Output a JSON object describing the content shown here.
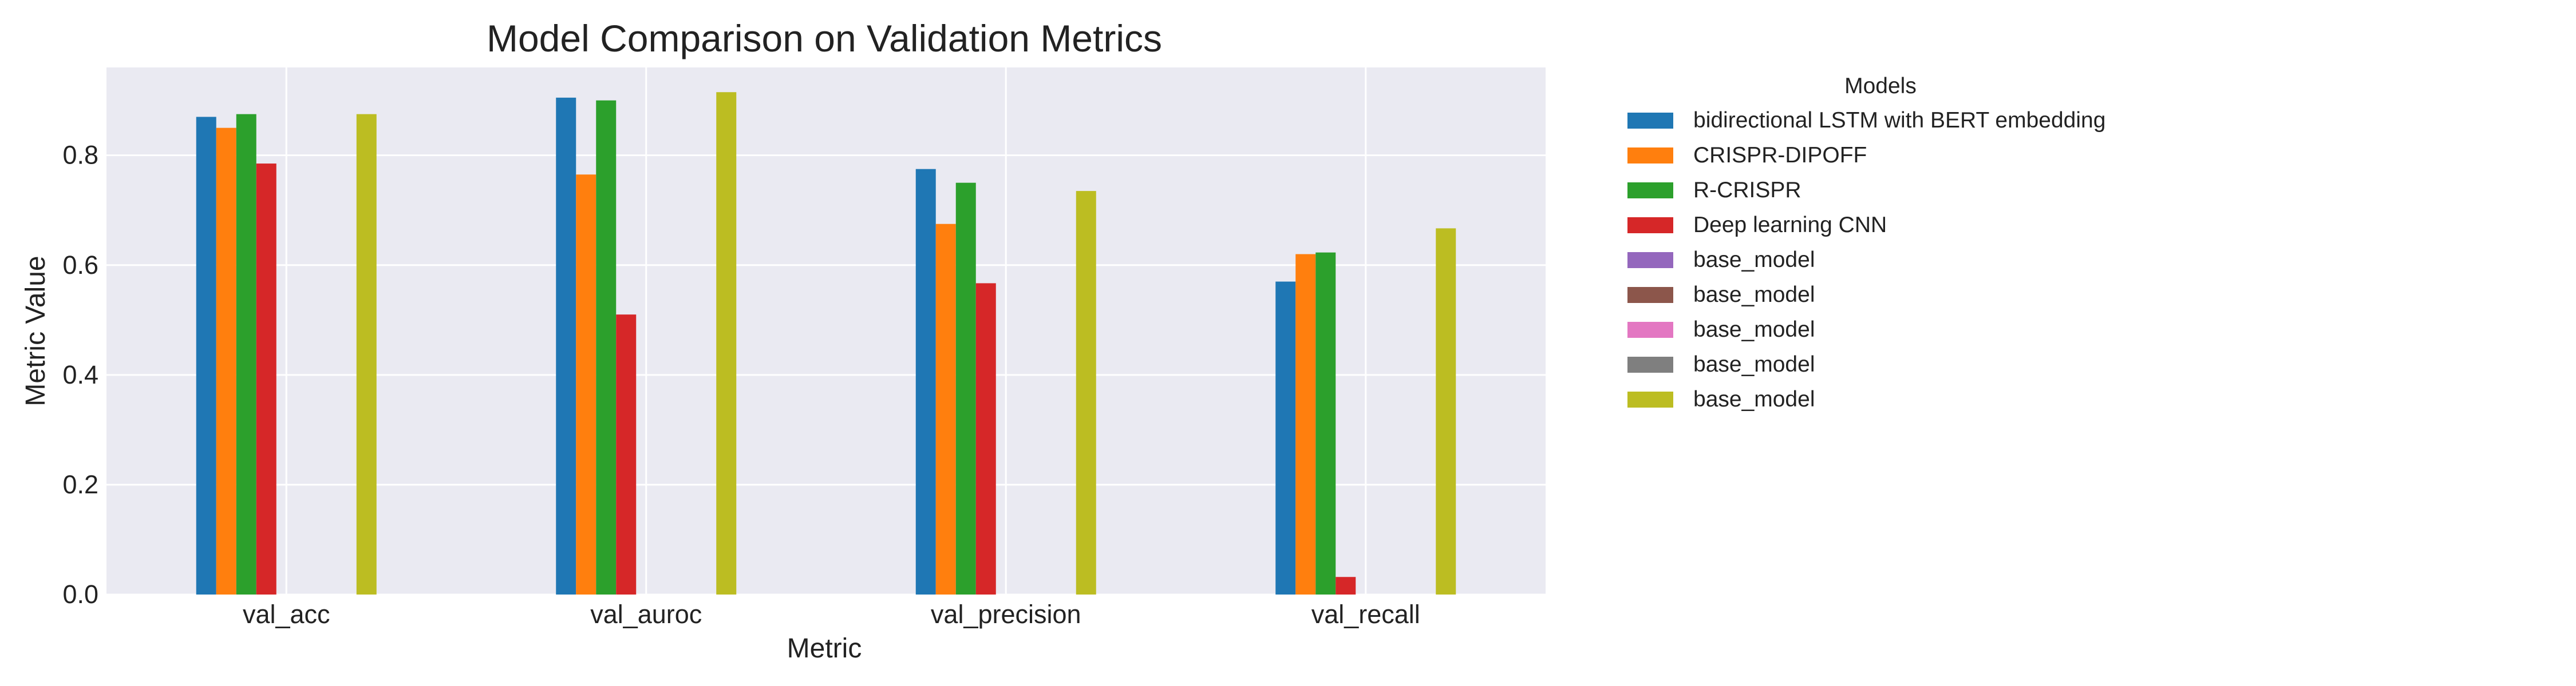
{
  "chart_data": {
    "type": "bar",
    "title": "Model Comparison on Validation Metrics",
    "xlabel": "Metric",
    "ylabel": "Metric Value",
    "categories": [
      "val_acc",
      "val_auroc",
      "val_precision",
      "val_recall"
    ],
    "yticks": [
      "0.0",
      "0.2",
      "0.4",
      "0.6",
      "0.8"
    ],
    "ylim": [
      0,
      0.96
    ],
    "grid": true,
    "legend": {
      "title": "Models",
      "placement": "outside-right"
    },
    "series": [
      {
        "name": "bidirectional LSTM with BERT embedding",
        "color": "#1f77b4",
        "values": [
          0.87,
          0.905,
          0.775,
          0.57
        ]
      },
      {
        "name": "CRISPR-DIPOFF",
        "color": "#ff7f0e",
        "values": [
          0.85,
          0.765,
          0.675,
          0.62
        ]
      },
      {
        "name": "R-CRISPR",
        "color": "#2ca02c",
        "values": [
          0.875,
          0.9,
          0.75,
          0.623
        ]
      },
      {
        "name": "Deep learning CNN",
        "color": "#d62728",
        "values": [
          0.785,
          0.51,
          0.567,
          0.032
        ]
      },
      {
        "name": "base_model",
        "color": "#9467bd",
        "values": [
          null,
          null,
          null,
          null
        ]
      },
      {
        "name": "base_model",
        "color": "#8c564b",
        "values": [
          null,
          null,
          null,
          null
        ]
      },
      {
        "name": "base_model",
        "color": "#e377c2",
        "values": [
          null,
          null,
          null,
          null
        ]
      },
      {
        "name": "base_model",
        "color": "#7f7f7f",
        "values": [
          null,
          null,
          null,
          null
        ]
      },
      {
        "name": "base_model",
        "color": "#bcbd22",
        "values": [
          0.875,
          0.915,
          0.735,
          0.667
        ]
      }
    ]
  }
}
